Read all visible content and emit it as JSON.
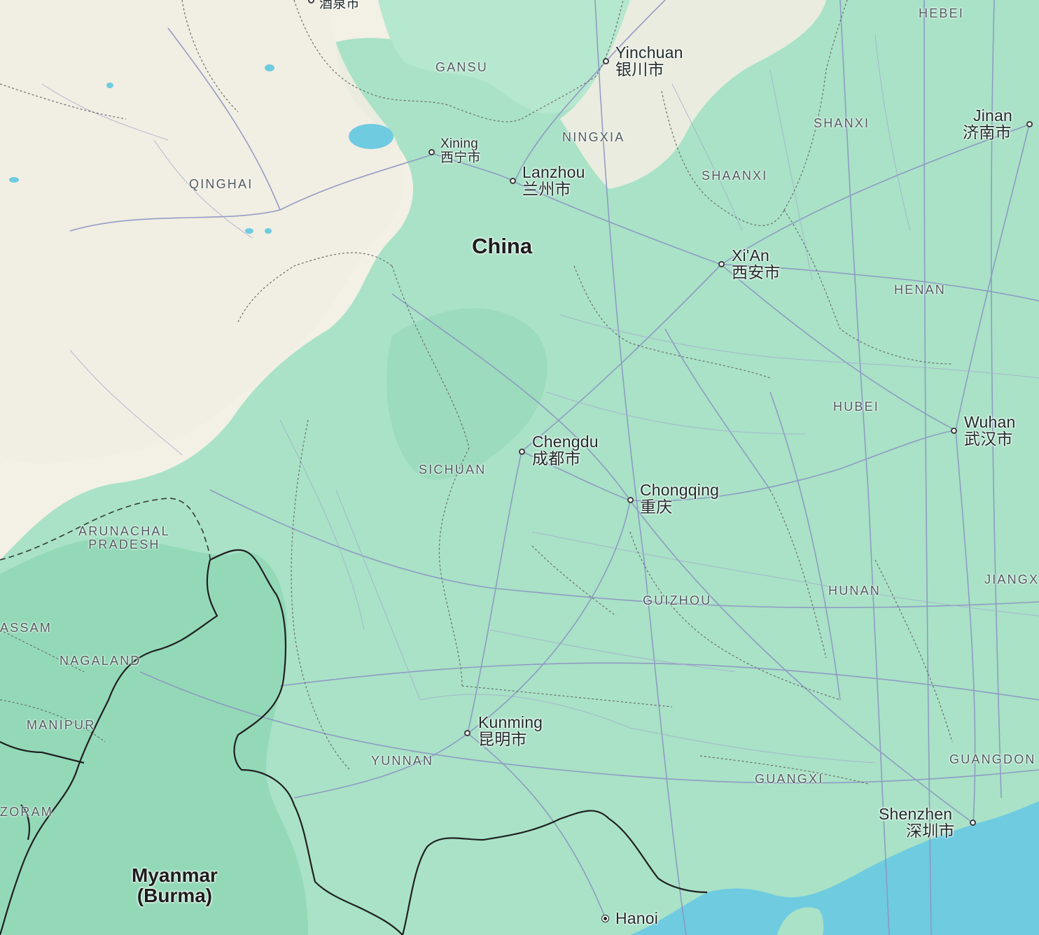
{
  "map": {
    "colors": {
      "land": "#f3f0e6",
      "vegetation": "#9fddc0",
      "vegetation_dark": "#7fcfaa",
      "water": "#6fcbe0",
      "roads": "#8d94c2",
      "border": "#202020"
    },
    "countries": [
      {
        "key": "china",
        "name": "China"
      },
      {
        "key": "myanmar",
        "line1": "Myanmar",
        "line2": "(Burma)"
      }
    ],
    "cities": [
      {
        "key": "jiuquan",
        "zh": "酒泉市"
      },
      {
        "key": "yinchuan",
        "en": "Yinchuan",
        "zh": "银川市"
      },
      {
        "key": "xining",
        "en": "Xining",
        "zh": "西宁市"
      },
      {
        "key": "lanzhou",
        "en": "Lanzhou",
        "zh": "兰州市"
      },
      {
        "key": "jinan",
        "en": "Jinan",
        "zh": "济南市"
      },
      {
        "key": "xian",
        "en": "Xi'An",
        "zh": "西安市"
      },
      {
        "key": "wuhan",
        "en": "Wuhan",
        "zh": "武汉市"
      },
      {
        "key": "chengdu",
        "en": "Chengdu",
        "zh": "成都市"
      },
      {
        "key": "chongqing",
        "en": "Chongqing",
        "zh": "重庆"
      },
      {
        "key": "kunming",
        "en": "Kunming",
        "zh": "昆明市"
      },
      {
        "key": "shenzhen",
        "en": "Shenzhen",
        "zh": "深圳市"
      },
      {
        "key": "hanoi",
        "en": "Hanoi"
      }
    ],
    "regions": [
      {
        "key": "hebei",
        "name": "HEBEI"
      },
      {
        "key": "gansu",
        "name": "GANSU"
      },
      {
        "key": "ningxia",
        "name": "NINGXIA"
      },
      {
        "key": "shanxi",
        "name": "SHANXI"
      },
      {
        "key": "shaanxi",
        "name": "SHAANXI"
      },
      {
        "key": "qinghai",
        "name": "QINGHAI"
      },
      {
        "key": "henan",
        "name": "HENAN"
      },
      {
        "key": "hubei",
        "name": "HUBEI"
      },
      {
        "key": "sichuan",
        "name": "SICHUAN"
      },
      {
        "key": "hunan",
        "name": "HUNAN"
      },
      {
        "key": "jiangxi",
        "name": "JIANGX"
      },
      {
        "key": "guizhou",
        "name": "GUIZHOU"
      },
      {
        "key": "yunnan",
        "name": "YUNNAN"
      },
      {
        "key": "guangxi",
        "name": "GUANGXI"
      },
      {
        "key": "guangdong",
        "name": "GUANGDON"
      },
      {
        "key": "arunachal",
        "line1": "ARUNACHAL",
        "line2": "PRADESH"
      },
      {
        "key": "assam",
        "name": "ASSAM"
      },
      {
        "key": "nagaland",
        "name": "NAGALAND"
      },
      {
        "key": "manipur",
        "name": "MANIPUR"
      },
      {
        "key": "mizoram",
        "name": "ZORAM"
      }
    ]
  }
}
